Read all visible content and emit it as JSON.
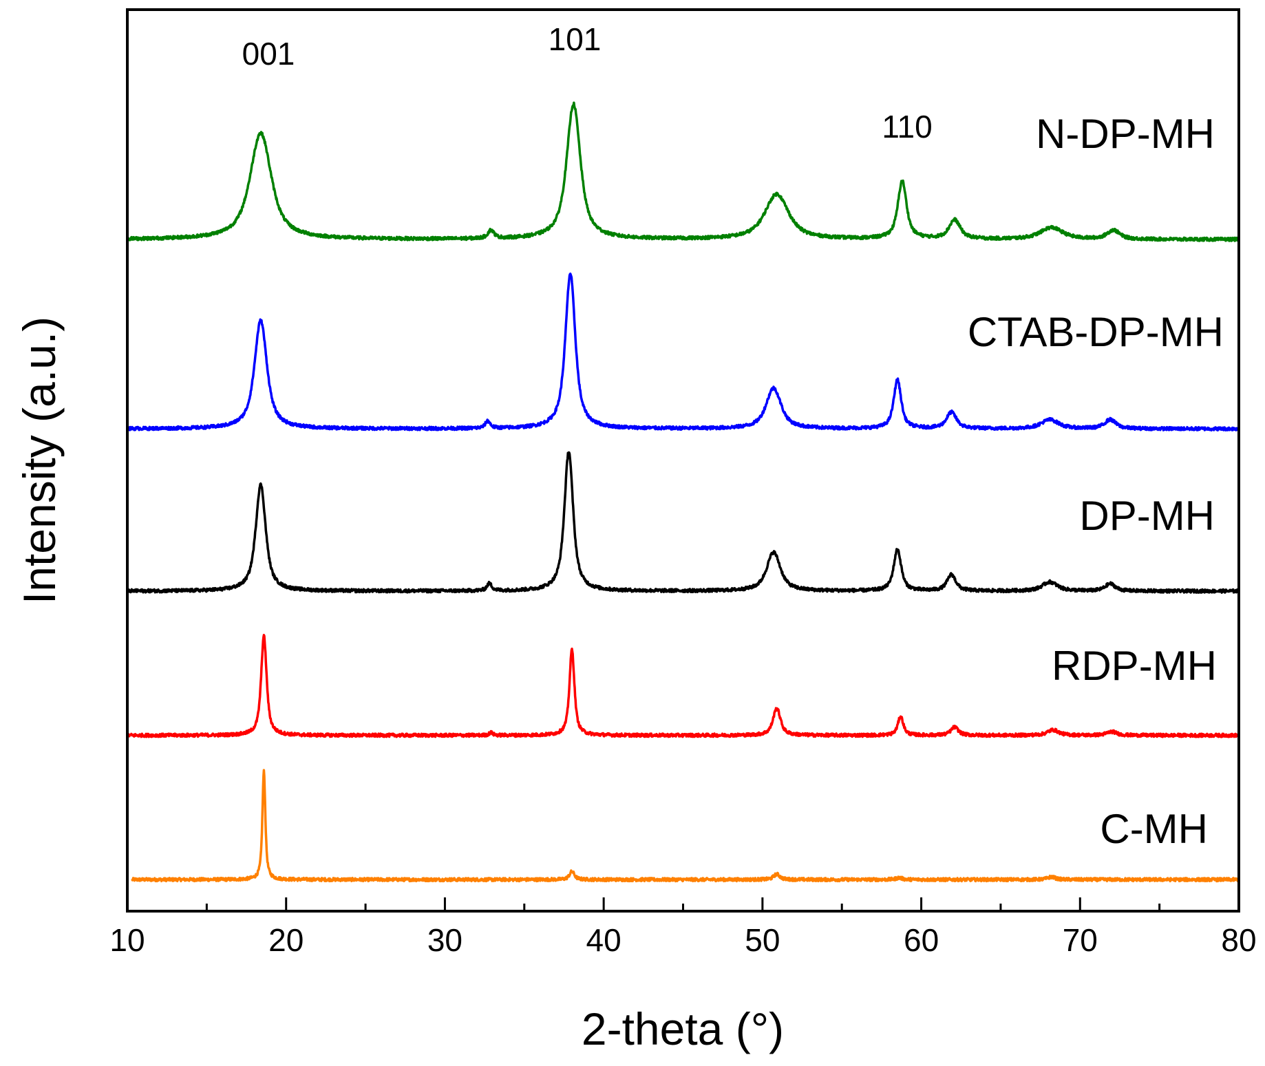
{
  "chart_data": {
    "type": "line",
    "title": "",
    "xlabel": "2-theta (°)",
    "ylabel": "Intensity (a.u.)",
    "xlim": [
      10,
      80
    ],
    "ylim": [
      0,
      100
    ],
    "xticks": [
      10,
      20,
      30,
      40,
      50,
      60,
      70,
      80
    ],
    "x_minor_step": 5,
    "yticks": [],
    "grid": false,
    "legend": "inline labels at right",
    "peak_annotations": [
      {
        "label": "001",
        "x": 18.5,
        "y": 98
      },
      {
        "label": "101",
        "x": 38.0,
        "y": 98
      },
      {
        "label": "110",
        "x": 58.5,
        "y": 87
      }
    ],
    "series": [
      {
        "name": "C-MH",
        "color": "#ff8000",
        "baseline": 3.5,
        "xstart": 10.3,
        "peaks": [
          {
            "x": 18.6,
            "height": 12.0,
            "width": 0.12
          },
          {
            "x": 38.0,
            "height": 0.9,
            "width": 0.2
          },
          {
            "x": 50.9,
            "height": 0.6,
            "width": 0.25
          },
          {
            "x": 58.6,
            "height": 0.2,
            "width": 0.25
          },
          {
            "x": 68.2,
            "height": 0.3,
            "width": 0.3
          }
        ]
      },
      {
        "name": "RDP-MH",
        "color": "#ff0000",
        "baseline": 19.5,
        "xstart": 10.0,
        "peaks": [
          {
            "x": 18.6,
            "height": 11.0,
            "width": 0.22
          },
          {
            "x": 32.9,
            "height": 0.3,
            "width": 0.15
          },
          {
            "x": 38.0,
            "height": 9.5,
            "width": 0.2
          },
          {
            "x": 50.9,
            "height": 3.0,
            "width": 0.3
          },
          {
            "x": 58.7,
            "height": 2.1,
            "width": 0.22
          },
          {
            "x": 62.1,
            "height": 0.9,
            "width": 0.3
          },
          {
            "x": 68.3,
            "height": 0.6,
            "width": 0.45
          },
          {
            "x": 72.0,
            "height": 0.4,
            "width": 0.4
          }
        ]
      },
      {
        "name": "DP-MH",
        "color": "#000000",
        "baseline": 35.5,
        "xstart": 10.0,
        "peaks": [
          {
            "x": 18.4,
            "height": 11.8,
            "width": 0.4
          },
          {
            "x": 32.8,
            "height": 0.8,
            "width": 0.2
          },
          {
            "x": 37.8,
            "height": 15.5,
            "width": 0.35
          },
          {
            "x": 50.7,
            "height": 4.3,
            "width": 0.55
          },
          {
            "x": 58.5,
            "height": 4.6,
            "width": 0.3
          },
          {
            "x": 61.9,
            "height": 1.8,
            "width": 0.35
          },
          {
            "x": 68.1,
            "height": 1.0,
            "width": 0.6
          },
          {
            "x": 71.9,
            "height": 0.8,
            "width": 0.4
          }
        ]
      },
      {
        "name": "CTAB-DP-MH",
        "color": "#0000ff",
        "baseline": 53.5,
        "xstart": 10.0,
        "peaks": [
          {
            "x": 18.4,
            "height": 12.0,
            "width": 0.5
          },
          {
            "x": 32.7,
            "height": 0.8,
            "width": 0.2
          },
          {
            "x": 37.9,
            "height": 17.2,
            "width": 0.4
          },
          {
            "x": 50.7,
            "height": 4.5,
            "width": 0.6
          },
          {
            "x": 58.5,
            "height": 5.4,
            "width": 0.3
          },
          {
            "x": 61.9,
            "height": 1.8,
            "width": 0.4
          },
          {
            "x": 68.1,
            "height": 1.0,
            "width": 0.7
          },
          {
            "x": 71.9,
            "height": 1.0,
            "width": 0.45
          }
        ]
      },
      {
        "name": "N-DP-MH",
        "color": "#008000",
        "baseline": 74.5,
        "xstart": 10.0,
        "peaks": [
          {
            "x": 18.4,
            "height": 11.8,
            "width": 0.85
          },
          {
            "x": 32.9,
            "height": 0.9,
            "width": 0.25
          },
          {
            "x": 38.1,
            "height": 15.0,
            "width": 0.55
          },
          {
            "x": 50.9,
            "height": 5.0,
            "width": 0.95
          },
          {
            "x": 58.8,
            "height": 6.4,
            "width": 0.35
          },
          {
            "x": 62.1,
            "height": 2.1,
            "width": 0.45
          },
          {
            "x": 68.2,
            "height": 1.3,
            "width": 0.9
          },
          {
            "x": 72.1,
            "height": 1.0,
            "width": 0.5
          }
        ]
      }
    ]
  },
  "series_label_text": {
    "N-DP-MH": "N-DP-MH",
    "CTAB-DP-MH": "CTAB-DP-MH",
    "DP-MH": "DP-MH",
    "RDP-MH": "RDP-MH",
    "C-MH": "C-MH"
  }
}
